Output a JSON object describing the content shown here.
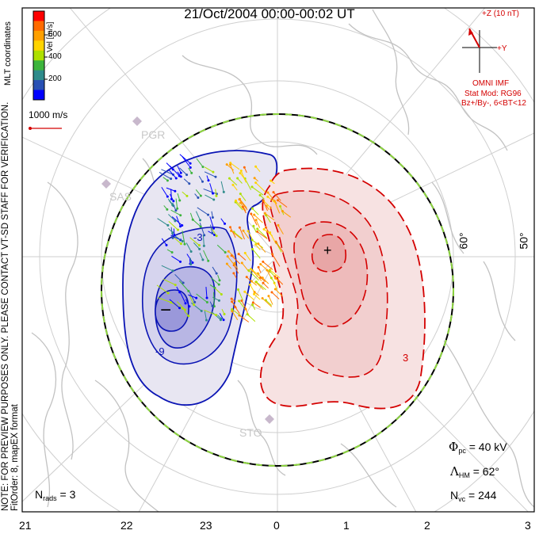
{
  "title": "21/Oct/2004 00:00-00:02 UT",
  "imf": {
    "z_label": "+Z (10 nT)",
    "y_label": "+Y",
    "source": "OMNI IMF",
    "model": "Stat Mod: RG96",
    "condition": "Bz+/By-, 6<BT<12",
    "color": "#d40000"
  },
  "colorbar": {
    "title": "Vel [m/s]",
    "ticks": [
      "600",
      "400",
      "200"
    ],
    "colors": [
      "#ff0000",
      "#ff6a00",
      "#ffa000",
      "#ffd400",
      "#aee000",
      "#3cb43c",
      "#2e8b8b",
      "#2850b4",
      "#0000ff"
    ]
  },
  "coordinates_label": "MLT coordinates",
  "scale_vector": {
    "label": "1000 m/s"
  },
  "note": "NOTE: FOR PREVIEW PURPOSES ONLY. PLEASE CONTACT VT-SD STAFF FOR VERIFICATION.",
  "fit_order": "FitOrder: 8, mapEX format",
  "latitude_labels": [
    "60°",
    "50°"
  ],
  "stations": [
    "PGR",
    "SAS",
    "STO"
  ],
  "mlt_labels": [
    "21",
    "22",
    "23",
    "0",
    "1",
    "2",
    "3"
  ],
  "stats": {
    "n_rads_symbol": "N",
    "n_rads_sub": "rads",
    "n_rads_value": "= 3",
    "phi_symbol": "Φ",
    "phi_sub": "pc",
    "phi_value": "= 40 kV",
    "lambda_symbol": "Λ",
    "lambda_sub": "HM",
    "lambda_value": "= 62°",
    "nvc_symbol": "N",
    "nvc_sub": "vc",
    "nvc_value": "= 244"
  },
  "potential": {
    "negative_marker": "−",
    "positive_marker": "+",
    "negative_color": "#0a14b4",
    "positive_color": "#d40000",
    "contour_labels": [
      "-9",
      "-3",
      "3"
    ]
  }
}
